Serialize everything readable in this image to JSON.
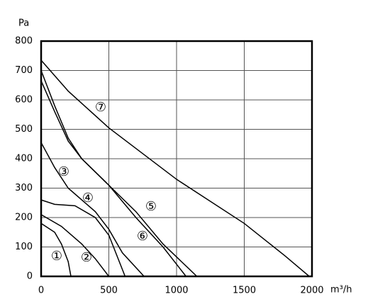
{
  "chart_data": {
    "type": "line",
    "ylabel": "Pa",
    "xlabel": "m³/h",
    "xlim": [
      0,
      2000
    ],
    "xticks": [
      0,
      500,
      1000,
      1500,
      2000
    ],
    "ylim": [
      0,
      800
    ],
    "yticks": [
      0,
      100,
      200,
      300,
      400,
      500,
      600,
      700,
      800
    ],
    "grid": true,
    "legend": false,
    "series": [
      {
        "name": "①",
        "color": "#000000",
        "x": [
          0,
          100,
          150,
          200,
          220
        ],
        "values": [
          180,
          150,
          110,
          50,
          0
        ]
      },
      {
        "name": "②",
        "color": "#000000",
        "x": [
          0,
          150,
          300,
          400,
          500
        ],
        "values": [
          210,
          170,
          110,
          60,
          0
        ]
      },
      {
        "name": "③",
        "color": "#000000",
        "x": [
          0,
          100,
          200,
          400,
          500,
          600,
          760
        ],
        "values": [
          455,
          370,
          300,
          220,
          160,
          80,
          0
        ]
      },
      {
        "name": "④",
        "color": "#000000",
        "x": [
          0,
          100,
          250,
          400,
          500,
          620
        ],
        "values": [
          260,
          245,
          240,
          200,
          140,
          0
        ]
      },
      {
        "name": "⑤",
        "color": "#000000",
        "x": [
          0,
          100,
          200,
          300,
          500,
          700,
          900,
          1150
        ],
        "values": [
          700,
          580,
          470,
          400,
          310,
          220,
          110,
          0
        ]
      },
      {
        "name": "⑥",
        "color": "#000000",
        "x": [
          0,
          100,
          200,
          300,
          500,
          700,
          900,
          1070
        ],
        "values": [
          665,
          560,
          460,
          400,
          310,
          200,
          100,
          0
        ]
      },
      {
        "name": "⑦",
        "color": "#000000",
        "x": [
          0,
          200,
          500,
          1000,
          1500,
          1800,
          1980
        ],
        "values": [
          735,
          630,
          505,
          330,
          180,
          70,
          0
        ]
      }
    ]
  }
}
